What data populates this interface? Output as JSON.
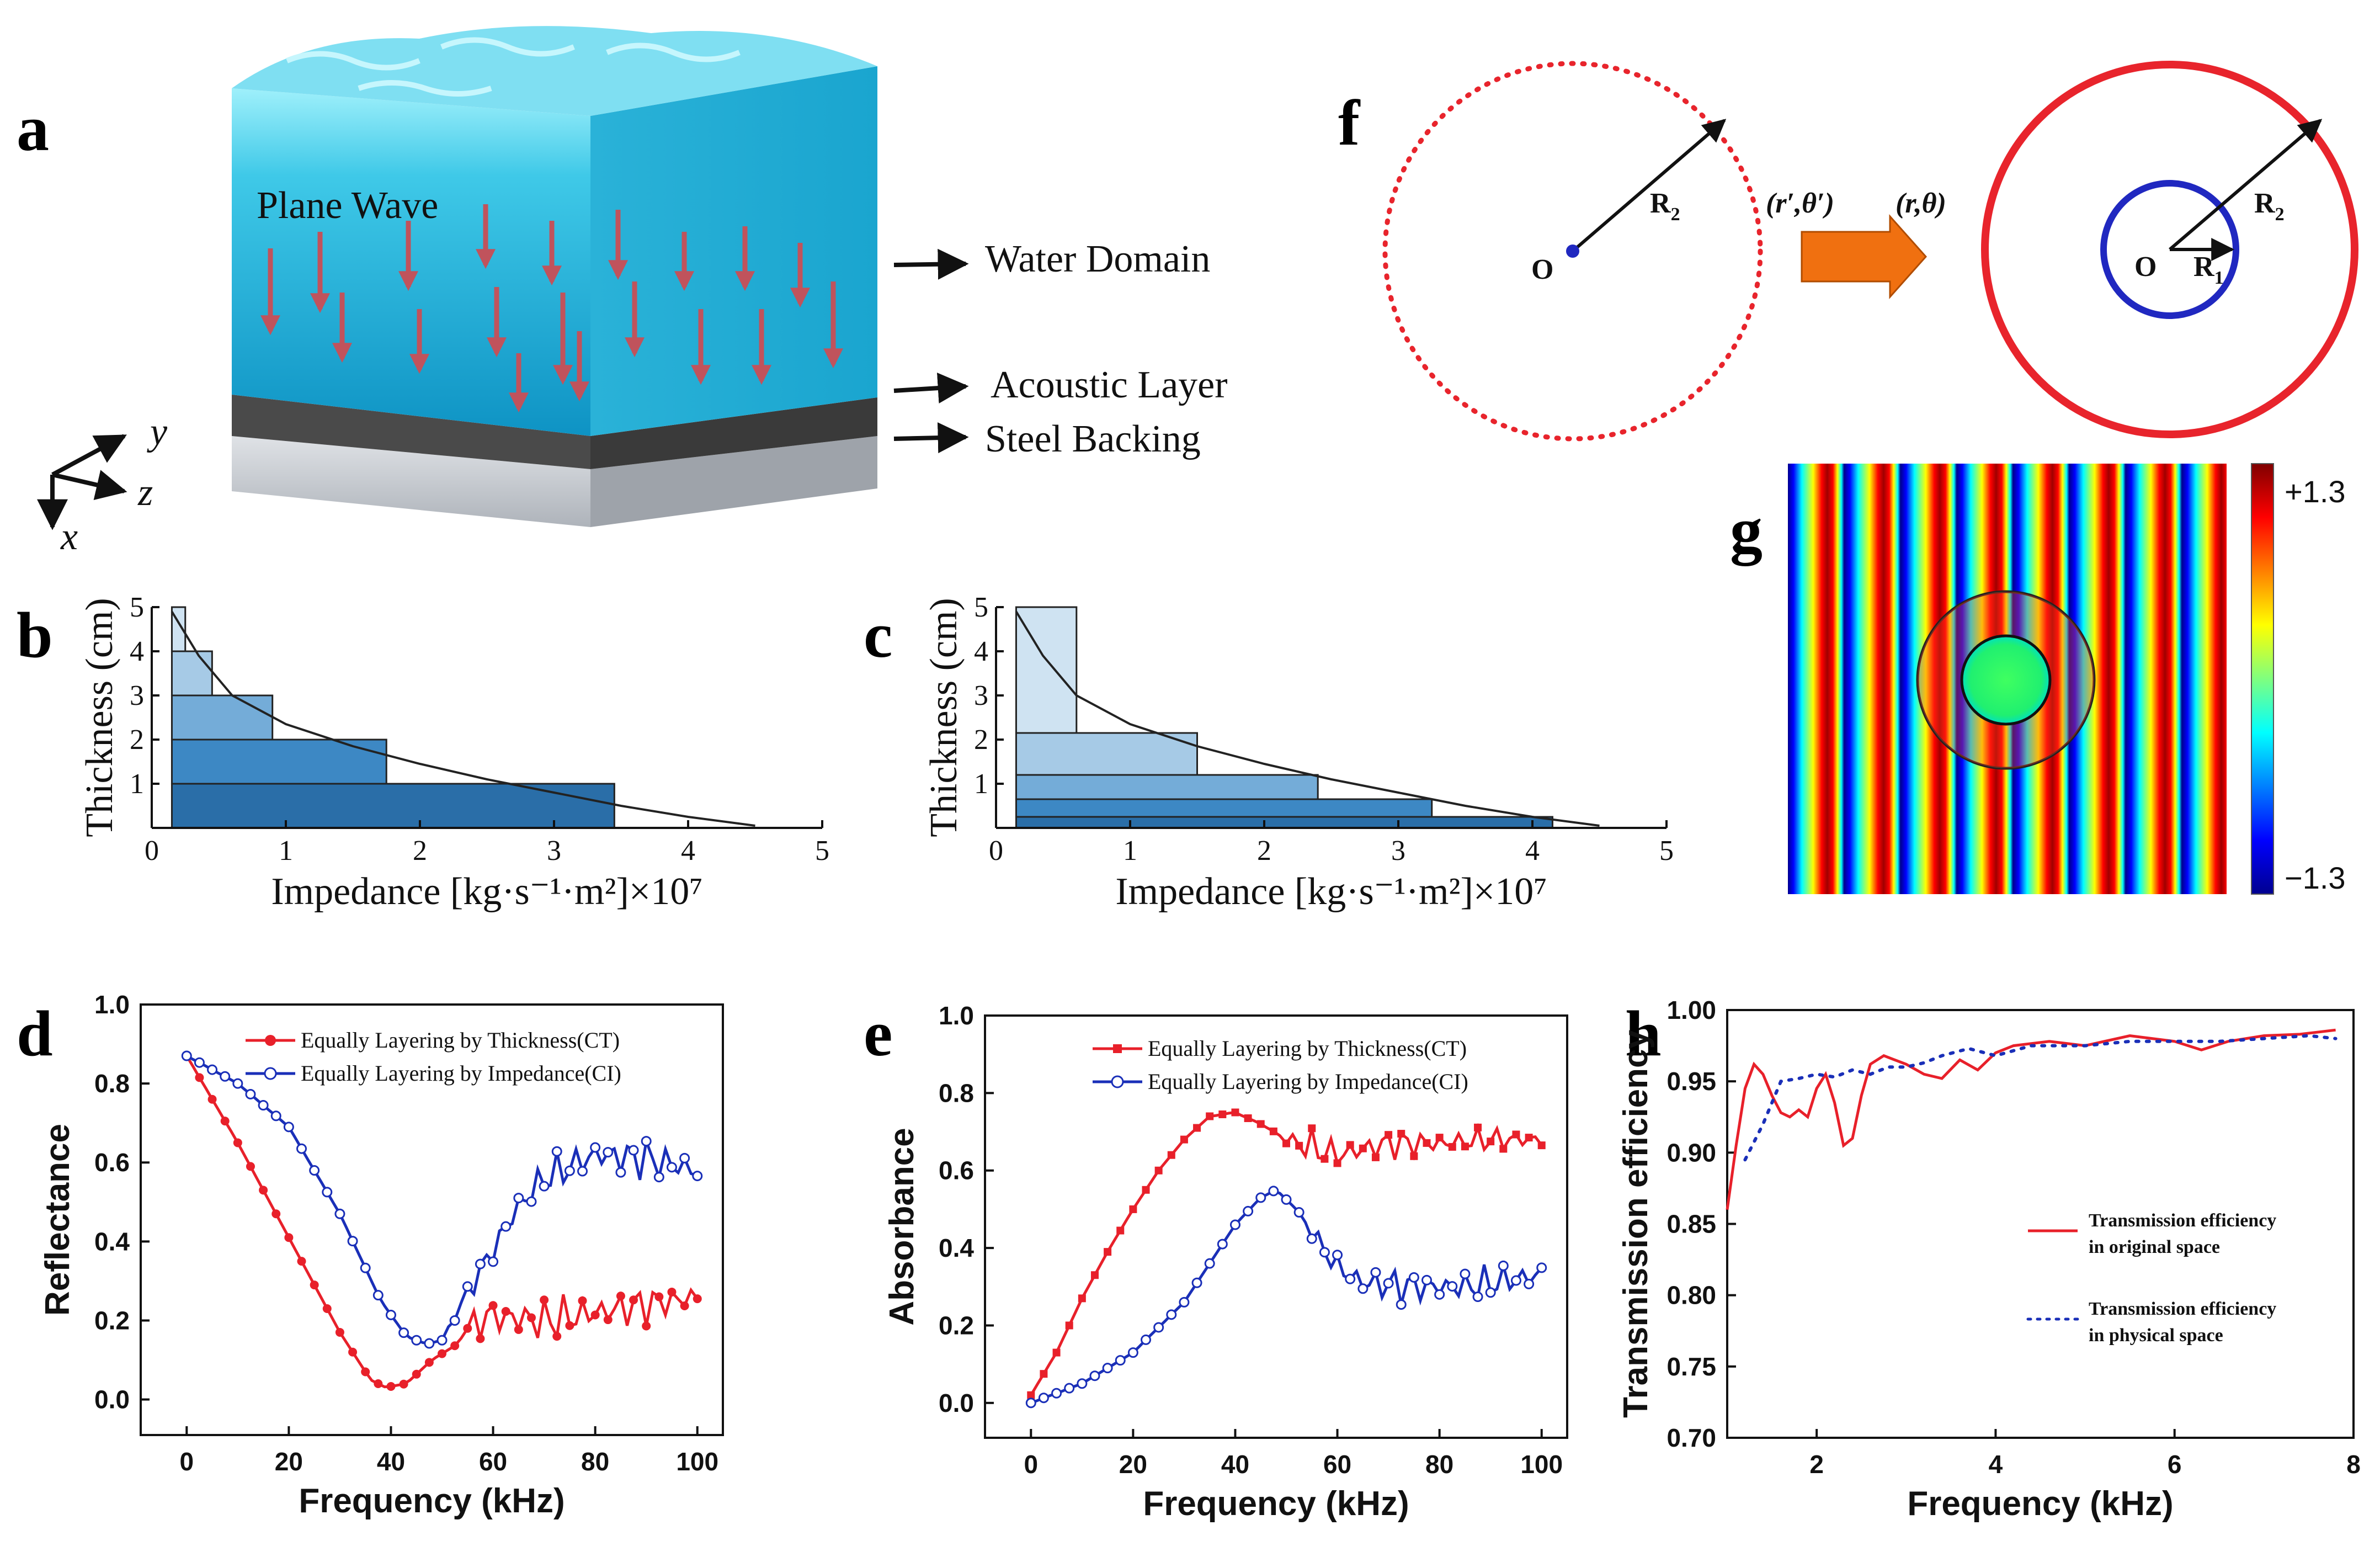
{
  "panels": {
    "a": "a",
    "b": "b",
    "c": "c",
    "d": "d",
    "e": "e",
    "f": "f",
    "g": "g",
    "h": "h"
  },
  "panel_a": {
    "wave_label": "Plane Wave",
    "layers": [
      "Water Domain",
      "Acoustic Layer",
      "Steel Backing"
    ],
    "axes": [
      "y",
      "z",
      "x"
    ],
    "colors": {
      "water_top": "#8fe3f5",
      "water": "#27b8da",
      "layer": "#4a4a4a",
      "steel": "#c9ccd2",
      "arrow": "#c0535c"
    }
  },
  "panel_f": {
    "r2": "R",
    "r2_sub": "2",
    "r1": "R",
    "r1_sub": "1",
    "origin": "O",
    "from_coords": "(r′,θ′)",
    "to_coords": "(r,θ)",
    "colors": {
      "outer": "#e8242c",
      "inner": "#2028c0",
      "arrow": "#f07010"
    }
  },
  "panel_g": {
    "cmax": "+1.3",
    "cmin": "−1.3",
    "colormap": [
      "#00008f",
      "#0000ff",
      "#00ffff",
      "#7fff7f",
      "#ffff00",
      "#ff0000",
      "#7f0000"
    ]
  },
  "chart_data": [
    {
      "id": "b",
      "type": "bar",
      "xlabel": "Impedance [kg·s⁻¹·m²]×10⁷",
      "ylabel": "Thickness (cm)",
      "xlim": [
        0,
        5
      ],
      "ylim": [
        0,
        5
      ],
      "xticks": [
        "0",
        "1",
        "2",
        "3",
        "4",
        "5"
      ],
      "yticks": [
        "1",
        "2",
        "3",
        "4",
        "5"
      ],
      "layers": [
        {
          "thickness_from": 0,
          "thickness_to": 1,
          "impedance_from": 0.15,
          "impedance_to": 3.45,
          "color": "#2a6ea8"
        },
        {
          "thickness_from": 1,
          "thickness_to": 2,
          "impedance_from": 0.15,
          "impedance_to": 1.75,
          "color": "#3d88c4"
        },
        {
          "thickness_from": 2,
          "thickness_to": 3,
          "impedance_from": 0.15,
          "impedance_to": 0.9,
          "color": "#74acd8"
        },
        {
          "thickness_from": 3,
          "thickness_to": 4,
          "impedance_from": 0.15,
          "impedance_to": 0.45,
          "color": "#a6cae6"
        },
        {
          "thickness_from": 4,
          "thickness_to": 5,
          "impedance_from": 0.15,
          "impedance_to": 0.25,
          "color": "#cfe3f2"
        }
      ],
      "curve": {
        "x": [
          0.15,
          0.35,
          0.6,
          1.0,
          1.5,
          2.0,
          2.5,
          3.0,
          3.5,
          4.0,
          4.5
        ],
        "y": [
          4.9,
          3.9,
          3.0,
          2.35,
          1.85,
          1.45,
          1.1,
          0.8,
          0.5,
          0.25,
          0.05
        ]
      }
    },
    {
      "id": "c",
      "type": "bar",
      "xlabel": "Impedance [kg·s⁻¹·m²]×10⁷",
      "ylabel": "Thickness (cm)",
      "xlim": [
        0,
        5
      ],
      "ylim": [
        0,
        5
      ],
      "xticks": [
        "0",
        "1",
        "2",
        "3",
        "4",
        "5"
      ],
      "yticks": [
        "1",
        "2",
        "3",
        "4",
        "5"
      ],
      "layers": [
        {
          "thickness_from": 0,
          "thickness_to": 0.25,
          "impedance_from": 0.15,
          "impedance_to": 4.15,
          "color": "#2a6ea8"
        },
        {
          "thickness_from": 0.25,
          "thickness_to": 0.65,
          "impedance_from": 0.15,
          "impedance_to": 3.25,
          "color": "#3d88c4"
        },
        {
          "thickness_from": 0.65,
          "thickness_to": 1.2,
          "impedance_from": 0.15,
          "impedance_to": 2.4,
          "color": "#74acd8"
        },
        {
          "thickness_from": 1.2,
          "thickness_to": 2.15,
          "impedance_from": 0.15,
          "impedance_to": 1.5,
          "color": "#a6cae6"
        },
        {
          "thickness_from": 2.15,
          "thickness_to": 5,
          "impedance_from": 0.15,
          "impedance_to": 0.6,
          "color": "#cfe3f2"
        }
      ],
      "curve": {
        "x": [
          0.15,
          0.35,
          0.6,
          1.0,
          1.5,
          2.0,
          2.5,
          3.0,
          3.5,
          4.0,
          4.5
        ],
        "y": [
          4.9,
          3.9,
          3.0,
          2.35,
          1.85,
          1.45,
          1.1,
          0.8,
          0.5,
          0.25,
          0.05
        ]
      }
    },
    {
      "id": "d",
      "type": "line",
      "xlabel": "Frequency (kHz)",
      "ylabel": "Reflectance",
      "xlim": [
        -9,
        105
      ],
      "ylim": [
        -0.09,
        1.0
      ],
      "xticks": [
        0,
        20,
        40,
        60,
        80,
        100
      ],
      "yticks": [
        0.0,
        0.2,
        0.4,
        0.6,
        0.8,
        1.0
      ],
      "series": [
        {
          "name": "Equally Layering by Thickness(CT)",
          "color": "#e8202a",
          "marker": "filled-circle",
          "anchors": [
            [
              0,
              0.87
            ],
            [
              10,
              0.65
            ],
            [
              20,
              0.41
            ],
            [
              30,
              0.17
            ],
            [
              36,
              0.05
            ],
            [
              39,
              0.03
            ],
            [
              43,
              0.04
            ],
            [
              48,
              0.1
            ],
            [
              53,
              0.14
            ],
            [
              56,
              0.2
            ],
            [
              60,
              0.21
            ],
            [
              70,
              0.2
            ],
            [
              80,
              0.22
            ],
            [
              90,
              0.24
            ],
            [
              100,
              0.26
            ]
          ],
          "osc": [
            [
              55,
              0.0
            ],
            [
              58,
              0.07
            ],
            [
              100,
              0.05
            ]
          ]
        },
        {
          "name": "Equally Layering by Impedance(CI)",
          "color": "#1a2fb8",
          "marker": "open-circle",
          "anchors": [
            [
              0,
              0.87
            ],
            [
              10,
              0.8
            ],
            [
              20,
              0.69
            ],
            [
              30,
              0.47
            ],
            [
              38,
              0.25
            ],
            [
              43,
              0.16
            ],
            [
              47,
              0.14
            ],
            [
              50,
              0.15
            ],
            [
              55,
              0.27
            ],
            [
              60,
              0.38
            ],
            [
              65,
              0.49
            ],
            [
              70,
              0.56
            ],
            [
              80,
              0.62
            ],
            [
              90,
              0.61
            ],
            [
              100,
              0.58
            ]
          ],
          "osc": [
            [
              50,
              0.0
            ],
            [
              60,
              0.05
            ],
            [
              100,
              0.06
            ]
          ]
        }
      ]
    },
    {
      "id": "e",
      "type": "line",
      "xlabel": "Frequency (kHz)",
      "ylabel": "Absorbance",
      "xlim": [
        -9,
        105
      ],
      "ylim": [
        -0.09,
        1.0
      ],
      "xticks": [
        0,
        20,
        40,
        60,
        80,
        100
      ],
      "yticks": [
        0.0,
        0.2,
        0.4,
        0.6,
        0.8,
        1.0
      ],
      "series": [
        {
          "name": "Equally Layering by Thickness(CT)",
          "color": "#e8202a",
          "marker": "filled-square",
          "anchors": [
            [
              0,
              0.02
            ],
            [
              5,
              0.13
            ],
            [
              10,
              0.27
            ],
            [
              15,
              0.39
            ],
            [
              20,
              0.5
            ],
            [
              25,
              0.6
            ],
            [
              30,
              0.68
            ],
            [
              35,
              0.74
            ],
            [
              40,
              0.75
            ],
            [
              45,
              0.72
            ],
            [
              50,
              0.68
            ],
            [
              55,
              0.66
            ],
            [
              60,
              0.64
            ],
            [
              70,
              0.67
            ],
            [
              80,
              0.67
            ],
            [
              90,
              0.68
            ],
            [
              100,
              0.68
            ]
          ],
          "osc": [
            [
              47,
              0.0
            ],
            [
              55,
              0.05
            ],
            [
              100,
              0.03
            ]
          ]
        },
        {
          "name": "Equally Layering by Impedance(CI)",
          "color": "#1a2fb8",
          "marker": "open-circle",
          "anchors": [
            [
              0,
              0.0
            ],
            [
              10,
              0.05
            ],
            [
              20,
              0.13
            ],
            [
              30,
              0.26
            ],
            [
              35,
              0.36
            ],
            [
              40,
              0.46
            ],
            [
              45,
              0.53
            ],
            [
              48,
              0.55
            ],
            [
              52,
              0.5
            ],
            [
              55,
              0.44
            ],
            [
              60,
              0.35
            ],
            [
              65,
              0.31
            ],
            [
              75,
              0.3
            ],
            [
              85,
              0.3
            ],
            [
              100,
              0.33
            ]
          ],
          "osc": [
            [
              52,
              0.0
            ],
            [
              60,
              0.05
            ],
            [
              100,
              0.05
            ]
          ]
        }
      ]
    },
    {
      "id": "h",
      "type": "line",
      "xlabel": "Frequency (kHz)",
      "ylabel": "Transmission efficiency",
      "xlim": [
        1.0,
        8.0
      ],
      "ylim": [
        0.7,
        1.0
      ],
      "xticks": [
        2,
        4,
        6,
        8
      ],
      "yticks": [
        "0.70",
        "0.75",
        "0.80",
        "0.85",
        "0.90",
        "0.95",
        "1.00"
      ],
      "series": [
        {
          "name": "Transmission efficiency in original space",
          "legend_lines": [
            "Transmission efficiency",
            "in original space"
          ],
          "color": "#e8202a",
          "style": "solid",
          "points": [
            [
              1.0,
              0.86
            ],
            [
              1.1,
              0.905
            ],
            [
              1.2,
              0.945
            ],
            [
              1.3,
              0.962
            ],
            [
              1.4,
              0.955
            ],
            [
              1.5,
              0.94
            ],
            [
              1.6,
              0.928
            ],
            [
              1.7,
              0.925
            ],
            [
              1.8,
              0.93
            ],
            [
              1.9,
              0.925
            ],
            [
              2.0,
              0.945
            ],
            [
              2.1,
              0.955
            ],
            [
              2.2,
              0.935
            ],
            [
              2.3,
              0.905
            ],
            [
              2.4,
              0.91
            ],
            [
              2.5,
              0.94
            ],
            [
              2.6,
              0.962
            ],
            [
              2.75,
              0.968
            ],
            [
              3.0,
              0.962
            ],
            [
              3.2,
              0.955
            ],
            [
              3.4,
              0.952
            ],
            [
              3.6,
              0.965
            ],
            [
              3.8,
              0.958
            ],
            [
              4.0,
              0.97
            ],
            [
              4.2,
              0.975
            ],
            [
              4.6,
              0.978
            ],
            [
              5.0,
              0.975
            ],
            [
              5.5,
              0.982
            ],
            [
              6.0,
              0.978
            ],
            [
              6.3,
              0.972
            ],
            [
              6.6,
              0.978
            ],
            [
              7.0,
              0.982
            ],
            [
              7.4,
              0.983
            ],
            [
              7.8,
              0.986
            ]
          ]
        },
        {
          "name": "Transmission efficiency in physical space",
          "legend_lines": [
            "Transmission efficiency",
            "in physical space"
          ],
          "color": "#1a2fb8",
          "style": "dotted",
          "points": [
            [
              1.2,
              0.895
            ],
            [
              1.4,
              0.92
            ],
            [
              1.6,
              0.95
            ],
            [
              1.8,
              0.952
            ],
            [
              2.0,
              0.955
            ],
            [
              2.2,
              0.953
            ],
            [
              2.4,
              0.958
            ],
            [
              2.6,
              0.955
            ],
            [
              2.8,
              0.96
            ],
            [
              3.0,
              0.96
            ],
            [
              3.2,
              0.963
            ],
            [
              3.4,
              0.968
            ],
            [
              3.7,
              0.973
            ],
            [
              4.0,
              0.968
            ],
            [
              4.4,
              0.975
            ],
            [
              5.0,
              0.975
            ],
            [
              5.5,
              0.978
            ],
            [
              6.0,
              0.978
            ],
            [
              6.5,
              0.978
            ],
            [
              7.0,
              0.98
            ],
            [
              7.5,
              0.982
            ],
            [
              7.8,
              0.98
            ]
          ]
        }
      ]
    }
  ]
}
